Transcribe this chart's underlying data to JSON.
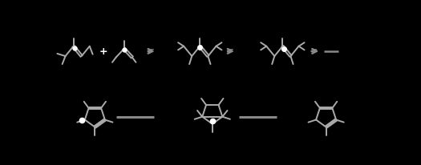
{
  "background_color": "#000000",
  "figure_width": 5.25,
  "figure_height": 2.07,
  "dpi": 100,
  "line_color": "#aaaaaa",
  "arrow_color": "#888888",
  "text_color": "#888888",
  "white_color": "#ffffff",
  "bond_lw": 1.4,
  "arrow_lw": 1.8
}
